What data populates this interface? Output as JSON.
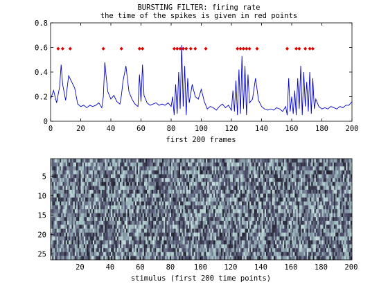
{
  "chart_data": [
    {
      "type": "line",
      "title": "BURSTING FILTER: firing rate",
      "subtitle": "the time of the spikes is given in red points",
      "xlabel": "first 200 frames",
      "ylabel": "",
      "xlim": [
        0,
        200
      ],
      "ylim": [
        0,
        0.8
      ],
      "xticks": [
        "0",
        "20",
        "40",
        "60",
        "80",
        "100",
        "120",
        "140",
        "160",
        "180",
        "200"
      ],
      "yticks": [
        "0",
        "0.2",
        "0.4",
        "0.6",
        "0.8"
      ],
      "grid": false,
      "series": [
        {
          "color": "#0000cc",
          "x": [
            0,
            2,
            4,
            6,
            7,
            8,
            10,
            12,
            14,
            16,
            18,
            20,
            22,
            24,
            26,
            28,
            30,
            32,
            34,
            35,
            36,
            37,
            38,
            40,
            42,
            44,
            46,
            47,
            48,
            50,
            52,
            54,
            56,
            58,
            59,
            60,
            61,
            62,
            64,
            66,
            68,
            70,
            72,
            74,
            76,
            78,
            80,
            81,
            82,
            83,
            84,
            85,
            86,
            87,
            88,
            89,
            90,
            91,
            92,
            94,
            96,
            98,
            100,
            102,
            104,
            106,
            108,
            110,
            112,
            114,
            116,
            118,
            120,
            121,
            122,
            123,
            124,
            125,
            126,
            127,
            128,
            129,
            130,
            131,
            132,
            134,
            136,
            138,
            140,
            142,
            144,
            146,
            148,
            150,
            152,
            154,
            156,
            157,
            158,
            159,
            160,
            161,
            162,
            163,
            164,
            165,
            166,
            167,
            168,
            169,
            170,
            171,
            172,
            173,
            174,
            175,
            176,
            178,
            180,
            182,
            184,
            186,
            188,
            190,
            192,
            194,
            196,
            198,
            200
          ],
          "values": [
            0.18,
            0.25,
            0.15,
            0.28,
            0.46,
            0.3,
            0.17,
            0.37,
            0.32,
            0.27,
            0.14,
            0.12,
            0.13,
            0.11,
            0.13,
            0.12,
            0.13,
            0.15,
            0.11,
            0.2,
            0.48,
            0.35,
            0.24,
            0.18,
            0.21,
            0.16,
            0.14,
            0.21,
            0.32,
            0.45,
            0.24,
            0.18,
            0.14,
            0.12,
            0.38,
            0.16,
            0.46,
            0.21,
            0.15,
            0.13,
            0.14,
            0.15,
            0.13,
            0.14,
            0.13,
            0.15,
            0.12,
            0.2,
            0.05,
            0.3,
            0.06,
            0.4,
            0.1,
            0.62,
            0.12,
            0.45,
            0.05,
            0.35,
            0.15,
            0.3,
            0.2,
            0.18,
            0.26,
            0.16,
            0.1,
            0.12,
            0.11,
            0.09,
            0.12,
            0.14,
            0.11,
            0.13,
            0.09,
            0.25,
            0.08,
            0.33,
            0.05,
            0.42,
            0.06,
            0.53,
            0.1,
            0.45,
            0.05,
            0.38,
            0.15,
            0.18,
            0.35,
            0.17,
            0.12,
            0.1,
            0.09,
            0.1,
            0.09,
            0.11,
            0.1,
            0.08,
            0.12,
            0.05,
            0.35,
            0.08,
            0.2,
            0.06,
            0.25,
            0.05,
            0.35,
            0.1,
            0.45,
            0.05,
            0.4,
            0.12,
            0.32,
            0.08,
            0.4,
            0.06,
            0.35,
            0.1,
            0.18,
            0.12,
            0.1,
            0.11,
            0.1,
            0.12,
            0.11,
            0.1,
            0.12,
            0.11,
            0.13,
            0.13,
            0.16
          ]
        }
      ],
      "spikes": {
        "color": "#dd0000",
        "y": 0.59,
        "x": [
          5,
          8,
          13,
          35,
          47,
          59,
          61,
          82,
          84,
          86,
          88,
          90,
          93,
          96,
          103,
          124,
          126,
          128,
          130,
          132,
          137,
          157,
          163,
          165,
          169,
          172,
          174
        ]
      }
    },
    {
      "type": "heatmap",
      "title": "",
      "xlabel": "stimulus (first 200 time points)",
      "ylabel": "",
      "xlim": [
        1,
        200
      ],
      "ylim": [
        1,
        26
      ],
      "rows": 26,
      "cols": 200,
      "xticks": [
        "20",
        "40",
        "60",
        "80",
        "100",
        "120",
        "140",
        "160",
        "180",
        "200"
      ],
      "yticks": [
        "5",
        "10",
        "15",
        "20",
        "25"
      ],
      "colormap": "bone",
      "grid": false
    }
  ]
}
